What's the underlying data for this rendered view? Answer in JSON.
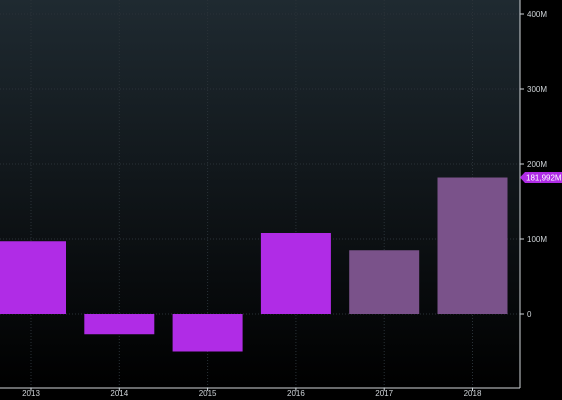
{
  "chart_data": {
    "type": "bar",
    "categories": [
      "2013",
      "2014",
      "2015",
      "2016",
      "2017",
      "2018"
    ],
    "values": [
      97,
      -27,
      -50,
      108,
      85,
      181.992
    ],
    "value_unit": "M",
    "bar_status": [
      "actual",
      "actual",
      "actual",
      "actual",
      "estimate",
      "estimate"
    ],
    "ylim": [
      -90,
      410
    ],
    "y_ticks": [
      0,
      100,
      200,
      300,
      400
    ],
    "y_tick_labels": [
      "0",
      "100M",
      "200M",
      "300M",
      "400M"
    ],
    "y_axis_side": "right",
    "grid": true,
    "last_value_label": "181,992M",
    "colors": {
      "actual": "#b02ce6",
      "estimate": "#7a528a",
      "badge": "#b02ce6",
      "axis": "#cfd4d8",
      "grid": "#2a3238",
      "bg_top": "#1f2a31",
      "bg_bottom": "#000000"
    }
  }
}
